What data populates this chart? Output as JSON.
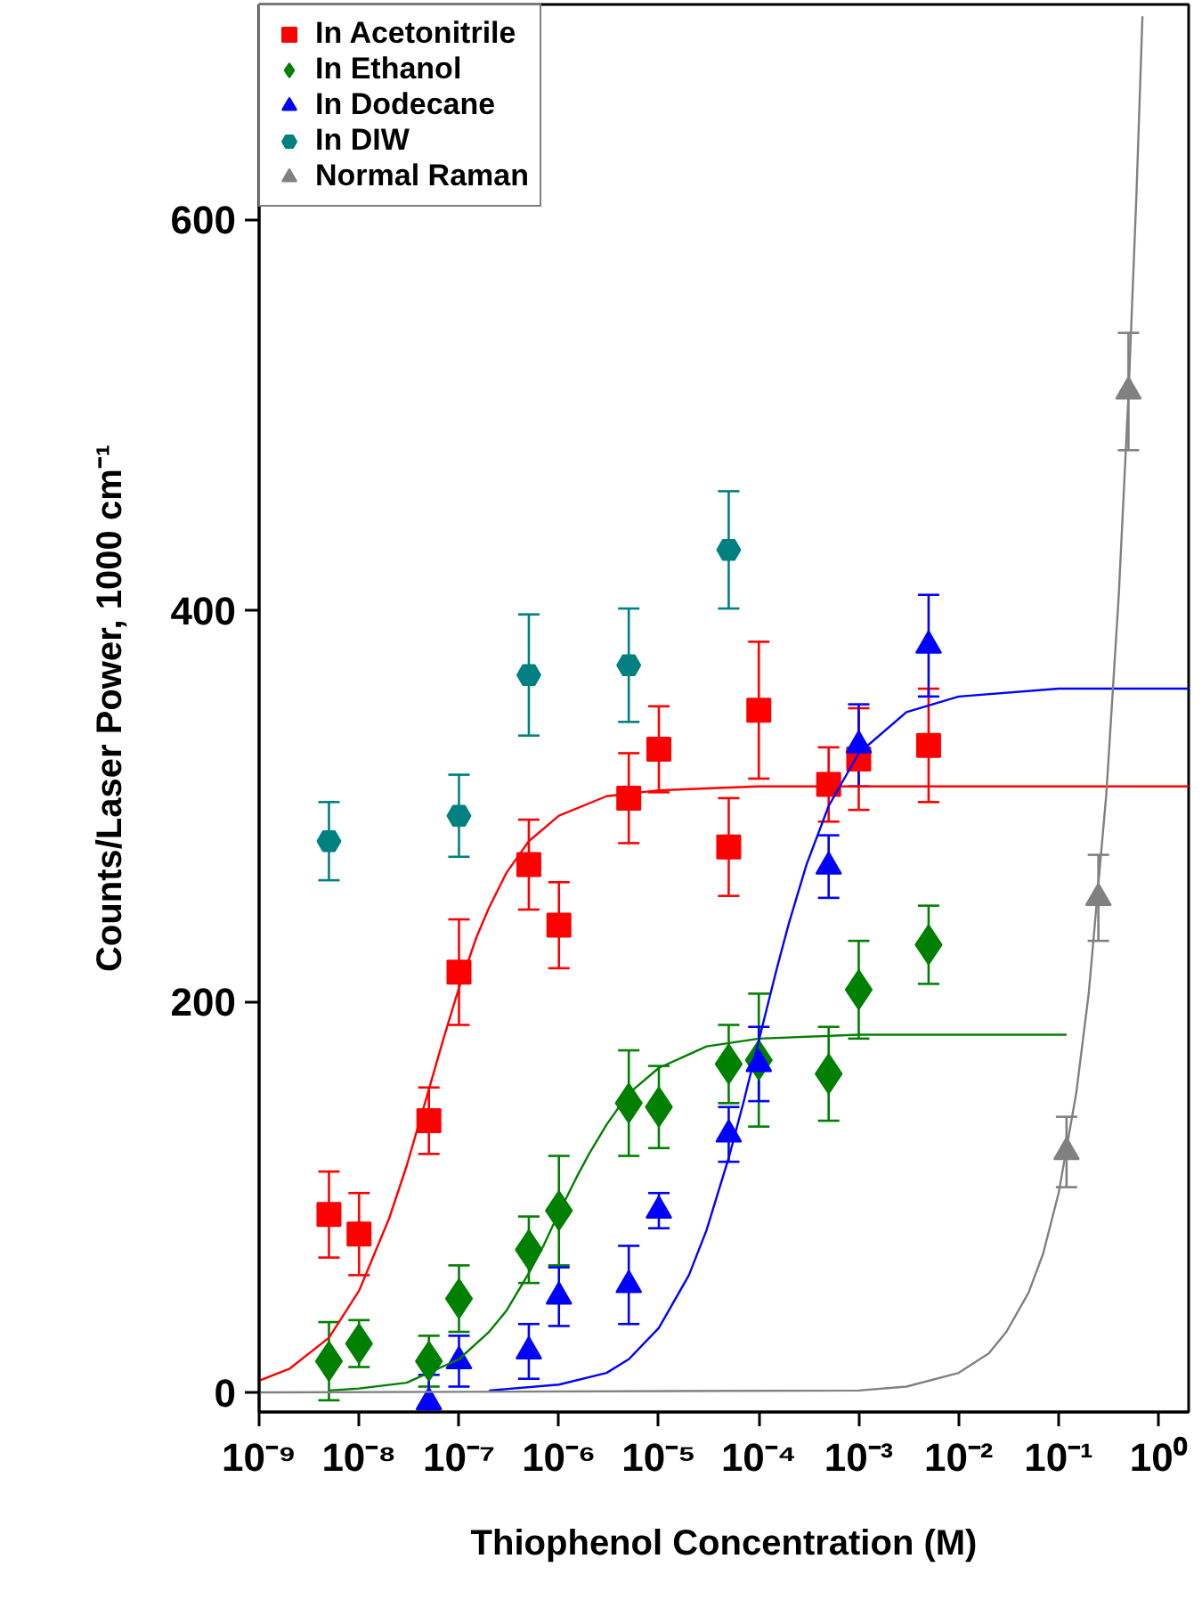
{
  "chart_data": {
    "type": "scatter",
    "xlabel": "Thiophenol Concentration (M)",
    "ylabel": "Counts/Laser Power, 1000 cm⁻¹",
    "log": "x",
    "grid": false,
    "legend": "top left",
    "xlim": [
      1e-09,
      2
    ],
    "ylim": [
      -10,
      710
    ],
    "xticks": [
      {
        "value": 1e-09,
        "label": "10⁻⁹"
      },
      {
        "value": 1e-08,
        "label": "10⁻⁸"
      },
      {
        "value": 1e-07,
        "label": "10⁻⁷"
      },
      {
        "value": 1e-06,
        "label": "10⁻⁶"
      },
      {
        "value": 1e-05,
        "label": "10⁻⁵"
      },
      {
        "value": 0.0001,
        "label": "10⁻⁴"
      },
      {
        "value": 0.001,
        "label": "10⁻³"
      },
      {
        "value": 0.01,
        "label": "10⁻²"
      },
      {
        "value": 0.1,
        "label": "10⁻¹"
      },
      {
        "value": 1,
        "label": "10⁰"
      }
    ],
    "yticks": [
      0,
      200,
      400,
      600
    ],
    "series": [
      {
        "name": "In Acetonitrile",
        "color": "#ff0000",
        "marker": "square",
        "x": [
          5e-09,
          1e-08,
          5e-08,
          1e-07,
          5e-07,
          1e-06,
          5e-06,
          1e-05,
          5e-05,
          0.0001,
          0.0005,
          0.001,
          0.005
        ],
        "values": [
          91,
          81,
          139,
          215,
          270,
          239,
          304,
          329,
          279,
          349,
          311,
          324,
          331
        ],
        "errors": [
          22,
          21,
          17,
          27,
          23,
          22,
          23,
          22,
          25,
          35,
          19,
          26,
          29
        ]
      },
      {
        "name": "In Ethanol",
        "color": "#008000",
        "marker": "diamond",
        "x": [
          5e-09,
          1e-08,
          5e-08,
          1e-07,
          5e-07,
          1e-06,
          5e-06,
          1e-05,
          5e-05,
          0.0001,
          0.0005,
          0.001,
          0.005
        ],
        "values": [
          16,
          25,
          16,
          48,
          73,
          93,
          148,
          146,
          168,
          170,
          163,
          206,
          229
        ],
        "errors": [
          20,
          12,
          13,
          17,
          17,
          28,
          27,
          21,
          20,
          34,
          24,
          25,
          20
        ]
      },
      {
        "name": "In Dodecane",
        "color": "#0000ff",
        "marker": "triangle",
        "x": [
          5e-08,
          1e-07,
          5e-07,
          1e-06,
          5e-06,
          1e-05,
          5e-05,
          0.0001,
          0.0005,
          0.001,
          0.005
        ],
        "values": [
          -5,
          16,
          21,
          49,
          55,
          93,
          132,
          168,
          269,
          331,
          382
        ],
        "errors": [
          [
            -10,
            9
          ],
          13,
          14,
          15,
          20,
          9,
          14,
          19,
          16,
          21,
          26
        ]
      },
      {
        "name": "In DIW",
        "color": "#008080",
        "marker": "circle",
        "x": [
          5e-09,
          1e-07,
          5e-07,
          5e-06,
          5e-05
        ],
        "values": [
          282,
          295,
          367,
          372,
          431
        ],
        "errors": [
          20,
          21,
          31,
          29,
          30
        ]
      },
      {
        "name": "Normal Raman",
        "color": "#808080",
        "marker": "triangle",
        "x": [
          0.12,
          0.25,
          0.5
        ],
        "values": [
          123,
          253,
          512
        ],
        "errors": [
          18,
          22,
          30
        ]
      },
      {
        "type": "line",
        "color": "#ff0000",
        "x": [
          1e-09,
          2e-09,
          5e-09,
          1e-08,
          2e-08,
          3e-08,
          5e-08,
          7e-08,
          1e-07,
          1.5e-07,
          2e-07,
          3e-07,
          5e-07,
          1e-06,
          3e-06,
          1e-05,
          0.0001,
          2
        ],
        "values": [
          6,
          12,
          28,
          52,
          89,
          116,
          155,
          181,
          207,
          233,
          248,
          266,
          282,
          295,
          305,
          308,
          310,
          310
        ]
      },
      {
        "type": "line",
        "color": "#008000",
        "x": [
          5e-09,
          1e-08,
          3e-08,
          1e-07,
          2e-07,
          3e-07,
          5e-07,
          7e-07,
          1e-06,
          1.5e-06,
          2e-06,
          3e-06,
          5e-06,
          1e-05,
          3e-05,
          0.0001,
          0.001,
          0.12
        ],
        "values": [
          1,
          2,
          5,
          17,
          31,
          42,
          61,
          75,
          92,
          110,
          122,
          137,
          153,
          166,
          177,
          181,
          183,
          183
        ]
      },
      {
        "type": "line",
        "color": "#0000ff",
        "x": [
          2e-07,
          1e-06,
          3e-06,
          5e-06,
          1e-05,
          2e-05,
          3e-05,
          5e-05,
          7e-05,
          0.0001,
          0.00015,
          0.0002,
          0.0003,
          0.0005,
          0.001,
          0.003,
          0.01,
          0.1,
          2
        ],
        "values": [
          1,
          4,
          10,
          17,
          33,
          60,
          83,
          120,
          148,
          180,
          216,
          240,
          270,
          300,
          327,
          348,
          356,
          360,
          360
        ]
      },
      {
        "type": "line",
        "color": "#808080",
        "x": [
          1e-09,
          0.001,
          0.003,
          0.01,
          0.02,
          0.03,
          0.05,
          0.07,
          0.1,
          0.15,
          0.2,
          0.3,
          0.4,
          0.5,
          0.6,
          0.69
        ],
        "values": [
          0,
          1,
          3,
          10,
          20,
          31,
          51,
          71,
          102,
          153,
          204,
          306,
          408,
          510,
          612,
          704
        ]
      }
    ]
  }
}
